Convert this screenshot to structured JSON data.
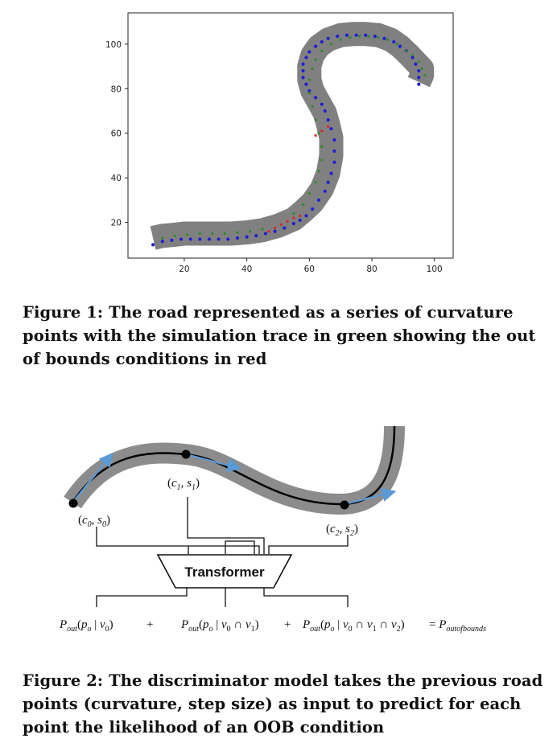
{
  "figure1": {
    "caption": "Figure 1: The road represented as a series of curvature points with the simulation trace in green showing the out of bounds conditions in red",
    "chart_data": {
      "type": "scatter",
      "title": "",
      "xlabel": "",
      "ylabel": "",
      "xlim": [
        2,
        106
      ],
      "ylim": [
        4,
        114
      ],
      "xticks": [
        20,
        40,
        60,
        80,
        100
      ],
      "yticks": [
        20,
        40,
        60,
        80,
        100
      ],
      "grid": false,
      "colors": {
        "road": "#808080",
        "road_points": "#1f1fd6",
        "trace": "#2e8b2e",
        "oob": "#d62728"
      },
      "road_centerline": {
        "x": [
          10,
          13,
          17,
          20,
          25,
          30,
          35,
          40,
          45,
          50,
          55,
          58,
          61,
          64,
          66,
          67,
          67,
          66,
          65,
          63,
          61,
          60,
          60,
          61,
          63,
          66,
          70,
          74,
          78,
          82,
          86,
          89,
          92,
          94,
          96,
          96,
          95
        ],
        "y": [
          13,
          14,
          14.5,
          15,
          15,
          15,
          15,
          15.5,
          16.5,
          18.5,
          21.5,
          25,
          29,
          35,
          42,
          50,
          58,
          64,
          69,
          74,
          79,
          84,
          90,
          95,
          99,
          102,
          104,
          104.5,
          104.5,
          104,
          102,
          99,
          95,
          92,
          89,
          86,
          83
        ]
      },
      "road_points": {
        "x": [
          10,
          13,
          16,
          19,
          22,
          25,
          28,
          31,
          34,
          37,
          40,
          43,
          46,
          49,
          52,
          55,
          57,
          59,
          61,
          63,
          65,
          66,
          67,
          68,
          68,
          68,
          67,
          66,
          65,
          64,
          62,
          60,
          59,
          58,
          58,
          58,
          59,
          60,
          62,
          64,
          66,
          69,
          72,
          75,
          78,
          81,
          84,
          87,
          89,
          91,
          93,
          94,
          95,
          95,
          95
        ],
        "y": [
          10,
          11.5,
          12,
          12.5,
          12.5,
          12.5,
          12.5,
          12.5,
          12.5,
          13,
          13.5,
          14,
          15,
          16,
          17.5,
          19.5,
          21,
          23,
          26,
          30,
          34,
          38,
          42,
          47,
          52,
          57,
          62,
          66,
          70,
          73,
          76,
          79,
          82,
          85,
          88,
          91,
          94,
          96.5,
          99,
          101,
          102.5,
          103.5,
          104,
          104,
          104,
          103.5,
          102.5,
          101,
          99,
          97,
          94,
          91,
          88,
          85,
          82
        ]
      },
      "trace_points": {
        "x": [
          13,
          17,
          21,
          25,
          29,
          33,
          37,
          41,
          45,
          55,
          58,
          60,
          62,
          63,
          64,
          64,
          63,
          62,
          61,
          60,
          60,
          61,
          62,
          64,
          67,
          70,
          73,
          76,
          79,
          82,
          85,
          88,
          91,
          93,
          95,
          96,
          97
        ],
        "y": [
          13,
          14,
          14.5,
          15,
          15,
          15,
          15.5,
          16,
          17,
          24,
          28,
          33,
          38,
          43,
          48,
          54,
          60,
          66,
          72,
          78,
          84,
          89,
          93,
          97,
          100,
          102,
          103,
          103.5,
          103.5,
          103,
          102,
          100,
          97,
          95,
          92,
          89,
          86
        ]
      },
      "oob_points": {
        "x": [
          47,
          49,
          51,
          53,
          55,
          57,
          62,
          64,
          66
        ],
        "y": [
          16,
          17.5,
          19,
          20.5,
          22,
          23,
          59,
          61,
          63
        ]
      }
    }
  },
  "figure2": {
    "caption": "Figure 2: The discriminator model takes the previous road points (curvature, step size) as input to predict for each point the likelihood of an OOB condition",
    "transformer_label": "Transformer",
    "points": [
      {
        "c": "c",
        "s": "s",
        "sub": "0"
      },
      {
        "c": "c",
        "s": "s",
        "sub": "1"
      },
      {
        "c": "c",
        "s": "s",
        "sub": "2"
      }
    ],
    "formula": {
      "P": "P",
      "out": "out",
      "p": "p",
      "o": "o",
      "v": "v",
      "bar": "|",
      "cap": "∩",
      "plus": "+",
      "equals": "=",
      "outofbounds": "outofbounds",
      "s0": "0",
      "s1": "1",
      "s2": "2"
    },
    "colors": {
      "road": "#8c8c8c",
      "centerline": "#000000",
      "arrow": "#5b9bd5"
    }
  }
}
